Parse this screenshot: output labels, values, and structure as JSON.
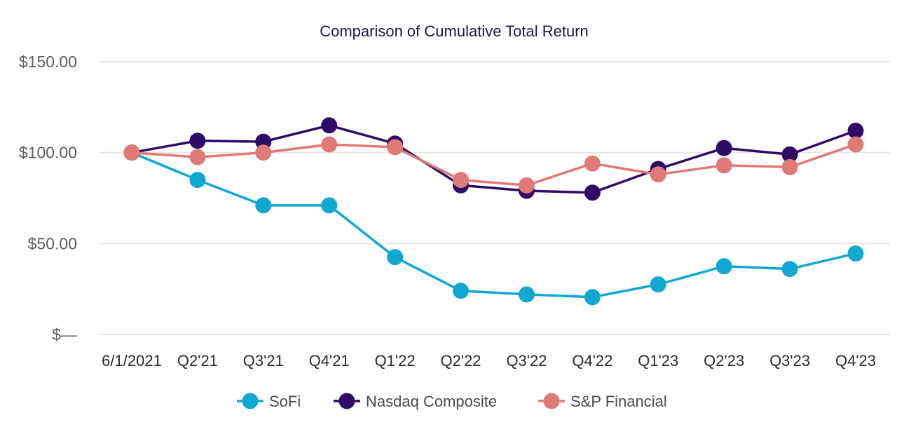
{
  "chart_data": {
    "type": "line",
    "title": "Comparison of Cumulative Total Return",
    "xlabel": "",
    "ylabel": "",
    "categories": [
      "6/1/2021",
      "Q2'21",
      "Q3'21",
      "Q4'21",
      "Q1'22",
      "Q2'22",
      "Q3'22",
      "Q4'22",
      "Q1'23",
      "Q2'23",
      "Q3'23",
      "Q4'23"
    ],
    "y_ticks": [
      {
        "value": 0,
        "label": "$—"
      },
      {
        "value": 50,
        "label": "$50.00"
      },
      {
        "value": 100,
        "label": "$100.00"
      },
      {
        "value": 150,
        "label": "$150.00"
      }
    ],
    "ylim": [
      0,
      150
    ],
    "grid": true,
    "legend_position": "bottom",
    "series": [
      {
        "name": "SoFi",
        "color": "#10a8d0",
        "values": [
          100,
          85,
          71,
          71,
          42.5,
          24,
          22,
          20.5,
          27.5,
          37.5,
          36,
          44.5
        ]
      },
      {
        "name": "Nasdaq Composite",
        "color": "#2e0b66",
        "values": [
          100,
          106.5,
          106,
          115,
          105,
          82,
          79,
          78,
          91,
          102.5,
          99,
          112
        ]
      },
      {
        "name": "S&P Financial",
        "color": "#e07a78",
        "values": [
          100,
          97.5,
          100,
          104.5,
          103,
          85,
          82,
          94,
          88,
          93,
          92,
          104.5
        ]
      }
    ]
  }
}
